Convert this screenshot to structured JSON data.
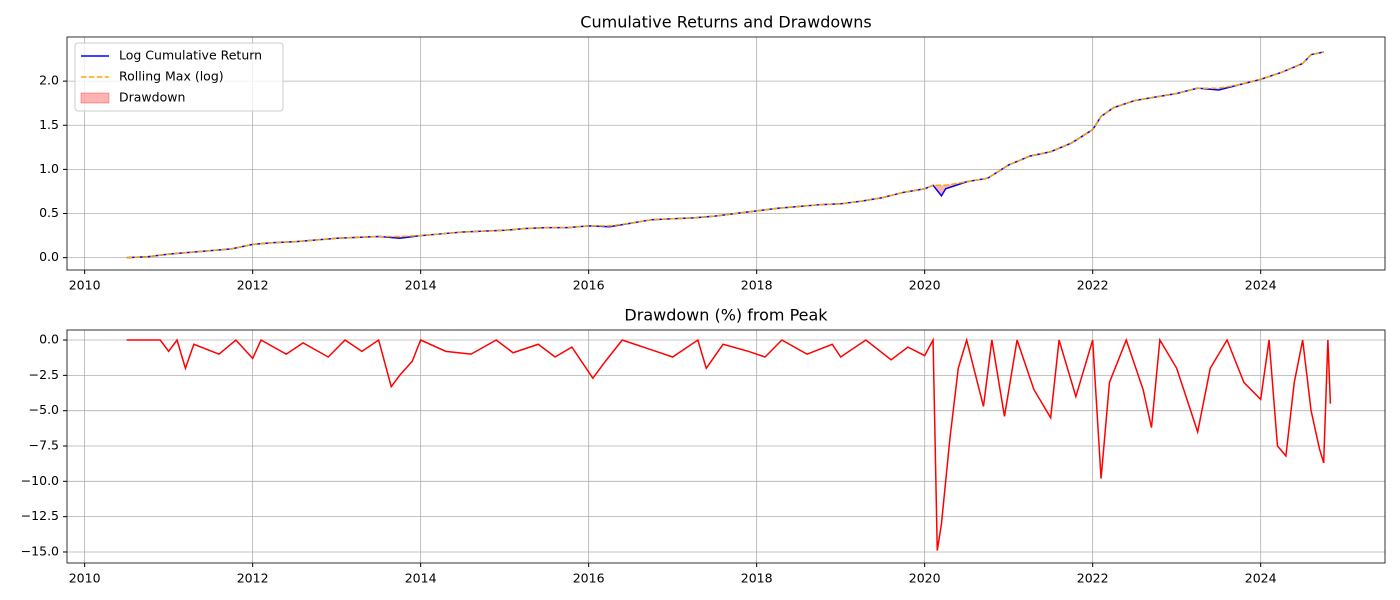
{
  "chart_data": [
    {
      "type": "line",
      "title": "Cumulative Returns and Drawdowns",
      "x": [
        2010.5,
        2010.75,
        2011,
        2011.25,
        2011.5,
        2011.75,
        2012,
        2012.25,
        2012.5,
        2012.75,
        2013,
        2013.25,
        2013.5,
        2013.75,
        2014,
        2014.25,
        2014.5,
        2014.75,
        2015,
        2015.25,
        2015.5,
        2015.75,
        2016,
        2016.25,
        2016.5,
        2016.75,
        2017,
        2017.25,
        2017.5,
        2017.75,
        2018,
        2018.25,
        2018.5,
        2018.75,
        2019,
        2019.25,
        2019.5,
        2019.75,
        2020,
        2020.1,
        2020.2,
        2020.25,
        2020.5,
        2020.75,
        2021,
        2021.25,
        2021.5,
        2021.75,
        2022,
        2022.1,
        2022.25,
        2022.5,
        2022.75,
        2023,
        2023.25,
        2023.5,
        2023.75,
        2024,
        2024.25,
        2024.5,
        2024.6,
        2024.75
      ],
      "series": [
        {
          "name": "Log Cumulative Return",
          "color": "#0000ff",
          "style": "solid",
          "values": [
            0,
            0.01,
            0.04,
            0.06,
            0.08,
            0.1,
            0.15,
            0.17,
            0.18,
            0.2,
            0.22,
            0.23,
            0.24,
            0.22,
            0.25,
            0.27,
            0.29,
            0.3,
            0.31,
            0.33,
            0.34,
            0.34,
            0.36,
            0.35,
            0.39,
            0.43,
            0.44,
            0.45,
            0.47,
            0.5,
            0.53,
            0.56,
            0.58,
            0.6,
            0.61,
            0.64,
            0.68,
            0.74,
            0.78,
            0.82,
            0.7,
            0.78,
            0.86,
            0.9,
            1.05,
            1.15,
            1.2,
            1.3,
            1.45,
            1.6,
            1.7,
            1.78,
            1.82,
            1.86,
            1.92,
            1.9,
            1.96,
            2.02,
            2.1,
            2.2,
            2.3,
            2.33
          ]
        },
        {
          "name": "Rolling Max (log)",
          "color": "#ffa500",
          "style": "dashed",
          "values": [
            0,
            0.01,
            0.04,
            0.06,
            0.08,
            0.1,
            0.15,
            0.17,
            0.18,
            0.2,
            0.22,
            0.23,
            0.24,
            0.24,
            0.25,
            0.27,
            0.29,
            0.3,
            0.31,
            0.33,
            0.34,
            0.34,
            0.36,
            0.36,
            0.39,
            0.43,
            0.44,
            0.45,
            0.47,
            0.5,
            0.53,
            0.56,
            0.58,
            0.6,
            0.61,
            0.64,
            0.68,
            0.74,
            0.78,
            0.82,
            0.82,
            0.82,
            0.86,
            0.9,
            1.05,
            1.15,
            1.2,
            1.3,
            1.45,
            1.6,
            1.7,
            1.78,
            1.82,
            1.86,
            1.92,
            1.92,
            1.96,
            2.02,
            2.1,
            2.2,
            2.3,
            2.33
          ]
        },
        {
          "name": "Drawdown",
          "color": "#ff0000",
          "style": "fill"
        }
      ],
      "xlim": [
        2009.79,
        2025.48
      ],
      "xticks": [
        2010,
        2012,
        2014,
        2016,
        2018,
        2020,
        2022,
        2024
      ],
      "ylim": [
        -0.14,
        2.5
      ],
      "yticks": [
        {
          "value": 0,
          "label": "0.0"
        },
        0.5,
        {
          "value": 1,
          "label": "1.0"
        },
        1.5,
        {
          "value": 2,
          "label": "2.0"
        }
      ],
      "grid": true,
      "legend": "upper-left"
    },
    {
      "type": "line",
      "title": "Drawdown (%) from Peak",
      "color": "#ff0000",
      "x": [
        2010.5,
        2010.9,
        2011.0,
        2011.1,
        2011.2,
        2011.3,
        2011.6,
        2011.8,
        2012.0,
        2012.1,
        2012.4,
        2012.6,
        2012.9,
        2013.1,
        2013.3,
        2013.5,
        2013.65,
        2013.75,
        2013.9,
        2014.0,
        2014.3,
        2014.6,
        2014.9,
        2015.1,
        2015.4,
        2015.6,
        2015.8,
        2016.05,
        2016.2,
        2016.4,
        2016.8,
        2017.0,
        2017.3,
        2017.4,
        2017.6,
        2017.9,
        2018.1,
        2018.3,
        2018.6,
        2018.9,
        2019.0,
        2019.3,
        2019.6,
        2019.8,
        2020.0,
        2020.1,
        2020.15,
        2020.2,
        2020.3,
        2020.4,
        2020.5,
        2020.7,
        2020.8,
        2020.95,
        2021.1,
        2021.3,
        2021.5,
        2021.6,
        2021.8,
        2022.0,
        2022.1,
        2022.2,
        2022.4,
        2022.6,
        2022.7,
        2022.8,
        2023.0,
        2023.25,
        2023.4,
        2023.6,
        2023.8,
        2024.0,
        2024.1,
        2024.2,
        2024.3,
        2024.4,
        2024.5,
        2024.6,
        2024.7,
        2024.75,
        2024.8,
        2024.83
      ],
      "values": [
        0,
        0,
        -0.8,
        0,
        -2.0,
        -0.3,
        -1.0,
        0,
        -1.3,
        0,
        -1.0,
        -0.2,
        -1.2,
        0,
        -0.8,
        0,
        -3.3,
        -2.5,
        -1.5,
        0,
        -0.8,
        -1.0,
        0,
        -0.9,
        -0.3,
        -1.2,
        -0.5,
        -2.7,
        -1.5,
        0,
        -0.8,
        -1.2,
        0,
        -2.0,
        -0.3,
        -0.8,
        -1.2,
        0,
        -1.0,
        -0.3,
        -1.2,
        0,
        -1.4,
        -0.5,
        -1.1,
        0,
        -14.9,
        -13.0,
        -7.0,
        -2.0,
        0,
        -4.7,
        0,
        -5.4,
        0,
        -3.5,
        -5.5,
        0,
        -4.0,
        0,
        -9.8,
        -3.0,
        0,
        -3.5,
        -6.2,
        0,
        -2.0,
        -6.5,
        -2.0,
        0,
        -3.0,
        -4.2,
        0,
        -7.5,
        -8.2,
        -3.0,
        0,
        -5.0,
        -7.7,
        -8.7,
        0,
        -4.5
      ],
      "xlim": [
        2009.79,
        2025.48
      ],
      "xticks": [
        2010,
        2012,
        2014,
        2016,
        2018,
        2020,
        2022,
        2024
      ],
      "ylim": [
        -15.78,
        0.71
      ],
      "yticks": [
        {
          "value": 0,
          "label": "0.0"
        },
        {
          "value": -2.5,
          "label": "−2.5"
        },
        {
          "value": -5,
          "label": "−5.0"
        },
        {
          "value": -7.5,
          "label": "−7.5"
        },
        {
          "value": -10,
          "label": "−10.0"
        },
        {
          "value": -12.5,
          "label": "−12.5"
        },
        {
          "value": -15,
          "label": "−15.0"
        }
      ],
      "grid": true
    }
  ]
}
